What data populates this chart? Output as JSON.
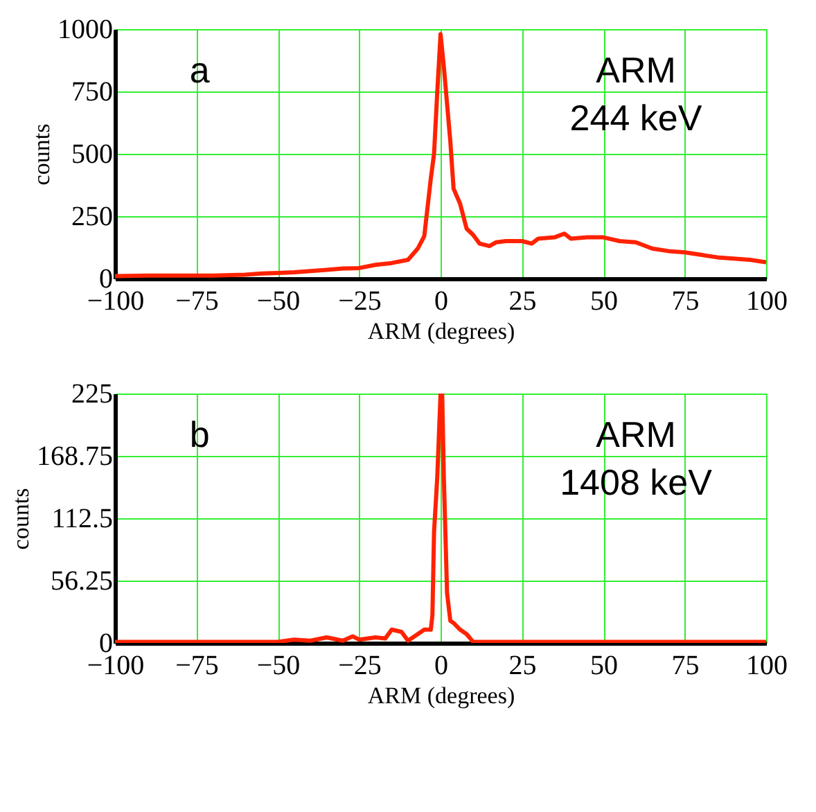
{
  "chart_data": [
    {
      "type": "line",
      "xlabel": "ARM (degrees)",
      "ylabel": "counts",
      "annotations": [
        "a",
        "ARM",
        "244 keV"
      ],
      "xlim": [
        -100,
        100
      ],
      "xticks": [
        -100,
        -75,
        -50,
        -25,
        0,
        25,
        50,
        75,
        100
      ],
      "ylim": [
        0,
        1000
      ],
      "yticks": [
        0,
        250,
        500,
        750,
        1000
      ],
      "grid": true,
      "marker": "none",
      "line_style": "solid",
      "x": [
        -100,
        -90,
        -80,
        -70,
        -60,
        -55,
        -50,
        -45,
        -40,
        -35,
        -30,
        -25,
        -20,
        -15,
        -10,
        -7,
        -5,
        -3,
        -2,
        -1,
        0,
        1,
        2,
        3,
        4,
        6,
        8,
        10,
        12,
        15,
        17,
        20,
        25,
        28,
        30,
        35,
        38,
        40,
        45,
        50,
        55,
        60,
        65,
        70,
        75,
        80,
        85,
        90,
        95,
        100
      ],
      "series": [
        {
          "color": "#ff2200",
          "values": [
            10,
            12,
            12,
            12,
            15,
            20,
            22,
            25,
            30,
            35,
            40,
            42,
            55,
            62,
            75,
            120,
            170,
            400,
            500,
            750,
            980,
            850,
            700,
            550,
            360,
            300,
            200,
            175,
            140,
            130,
            145,
            150,
            150,
            140,
            160,
            165,
            180,
            160,
            165,
            165,
            150,
            145,
            120,
            110,
            105,
            95,
            85,
            80,
            75,
            65
          ]
        }
      ]
    },
    {
      "type": "line",
      "xlabel": "ARM (degrees)",
      "ylabel": "counts",
      "annotations": [
        "b",
        "ARM",
        "1408 keV"
      ],
      "xlim": [
        -100,
        100
      ],
      "xticks": [
        -100,
        -75,
        -50,
        -25,
        0,
        25,
        50,
        75,
        100
      ],
      "ylim": [
        0,
        225
      ],
      "yticks": [
        0,
        56.25,
        112.5,
        168.75,
        225
      ],
      "grid": true,
      "marker": "none",
      "line_style": "solid",
      "x": [
        -100,
        -50,
        -45,
        -40,
        -35,
        -30,
        -27,
        -25,
        -20,
        -17,
        -15,
        -12,
        -10,
        -7,
        -5,
        -3,
        -2.5,
        -2,
        -1,
        0,
        0.5,
        1,
        2,
        3,
        4,
        6,
        8,
        10,
        15,
        100
      ],
      "series": [
        {
          "color": "#ff2200",
          "values": [
            1,
            1,
            3,
            2,
            5,
            2,
            6,
            3,
            5,
            4,
            12,
            10,
            2,
            8,
            12,
            12,
            25,
            100,
            150,
            225,
            225,
            150,
            45,
            20,
            18,
            12,
            8,
            1,
            1,
            1
          ]
        }
      ]
    }
  ]
}
